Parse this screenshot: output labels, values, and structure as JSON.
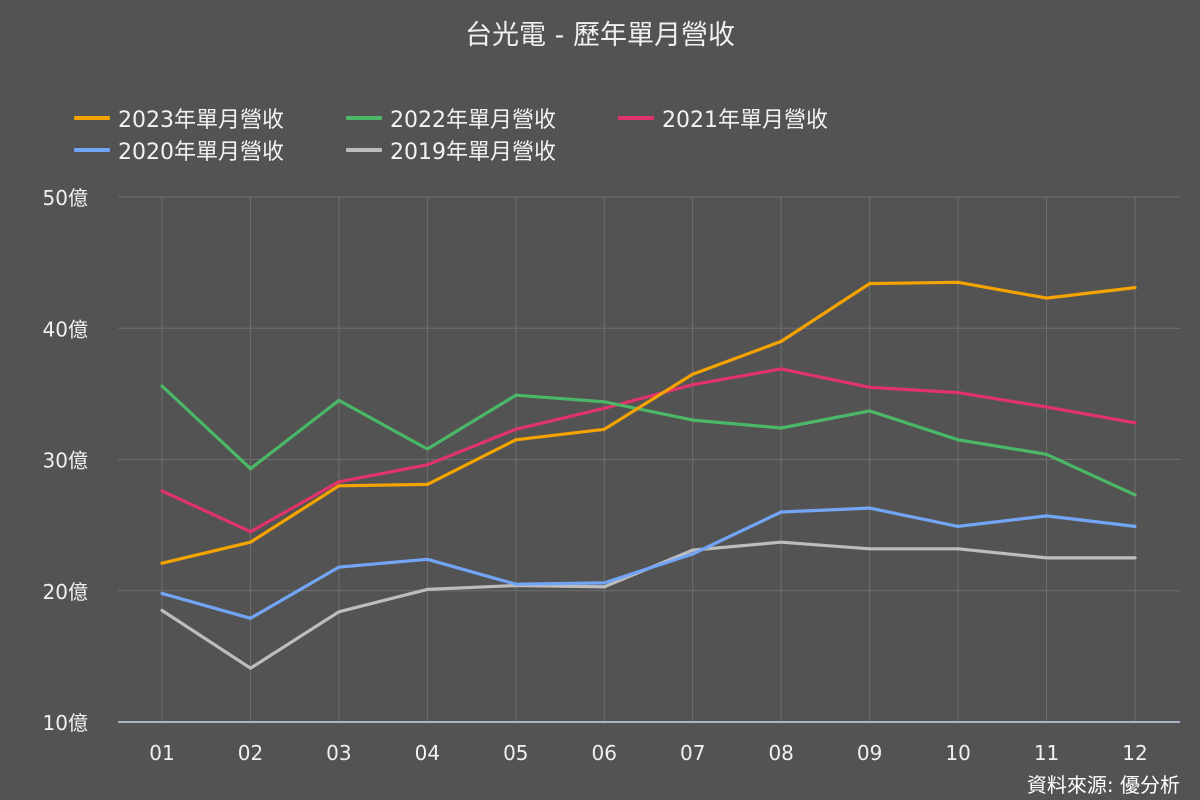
{
  "chart_data": {
    "type": "line",
    "title": "台光電 - 歷年單月營收",
    "categories": [
      "01",
      "02",
      "03",
      "04",
      "05",
      "06",
      "07",
      "08",
      "09",
      "10",
      "11",
      "12"
    ],
    "y_ticks": [
      "10億",
      "20億",
      "30億",
      "40億",
      "50億"
    ],
    "ylim": [
      10,
      50
    ],
    "grid": true,
    "legend_position": "top",
    "series": [
      {
        "name": "2023年單月營收",
        "color": "#f5a300",
        "values": [
          22.1,
          23.7,
          28.0,
          28.1,
          31.5,
          32.3,
          36.5,
          39.0,
          43.4,
          43.5,
          42.3,
          43.1
        ]
      },
      {
        "name": "2022年單月營收",
        "color": "#4ab866",
        "values": [
          35.6,
          29.3,
          34.5,
          30.8,
          34.9,
          34.4,
          33.0,
          32.4,
          33.7,
          31.5,
          30.4,
          27.3
        ]
      },
      {
        "name": "2021年單月營收",
        "color": "#e0336a",
        "values": [
          27.6,
          24.5,
          28.3,
          29.6,
          32.3,
          33.9,
          35.7,
          36.9,
          35.5,
          35.1,
          34.0,
          32.8
        ]
      },
      {
        "name": "2020年單月營收",
        "color": "#72a5f5",
        "values": [
          19.8,
          17.9,
          21.8,
          22.4,
          20.5,
          20.6,
          22.8,
          26.0,
          26.3,
          24.9,
          25.7,
          24.9
        ]
      },
      {
        "name": "2019年單月營收",
        "color": "#bdbdbd",
        "values": [
          18.5,
          14.1,
          18.4,
          20.1,
          20.4,
          20.3,
          23.1,
          23.7,
          23.2,
          23.2,
          22.5,
          22.5
        ]
      }
    ]
  },
  "source_text": "資料來源: 優分析"
}
